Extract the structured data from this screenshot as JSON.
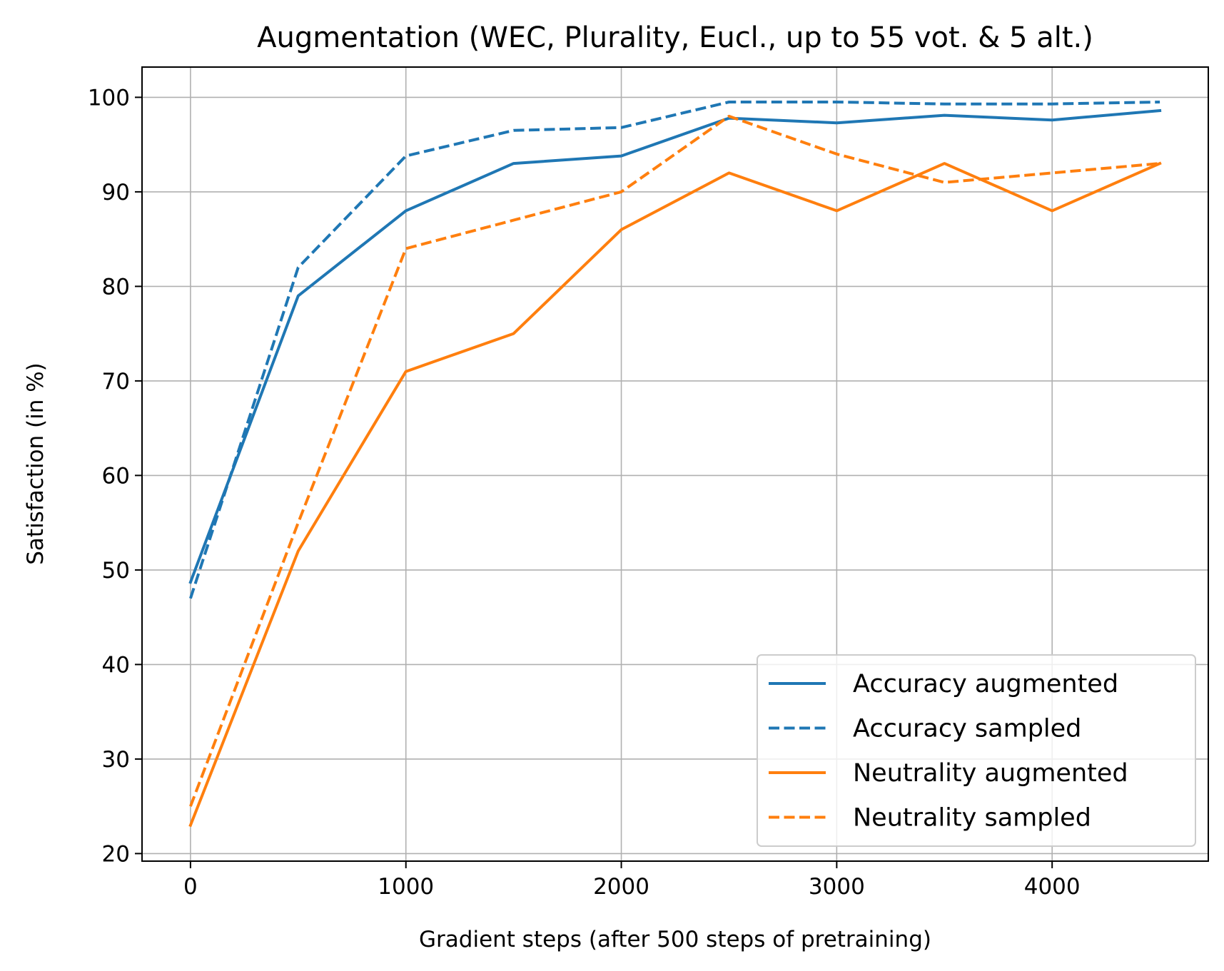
{
  "chart_data": {
    "type": "line",
    "title": "Augmentation (WEC, Plurality, Eucl., up to 55 vot. & 5 alt.)",
    "xlabel": "Gradient steps (after 500 steps of pretraining)",
    "ylabel": "Satisfaction (in %)",
    "x": [
      0,
      500,
      1000,
      1500,
      2000,
      2500,
      3000,
      3500,
      4000,
      4500
    ],
    "xlim": [
      -225,
      4725
    ],
    "ylim": [
      19.2,
      103.2
    ],
    "xticks": [
      0,
      1000,
      2000,
      3000,
      4000
    ],
    "yticks": [
      20,
      30,
      40,
      50,
      60,
      70,
      80,
      90,
      100
    ],
    "xtick_labels": [
      "0",
      "1000",
      "2000",
      "3000",
      "4000"
    ],
    "ytick_labels": [
      "20",
      "30",
      "40",
      "50",
      "60",
      "70",
      "80",
      "90",
      "100"
    ],
    "grid": true,
    "legend_position": "bottom-right",
    "series": [
      {
        "name": "Accuracy augmented",
        "color": "#1f77b4",
        "style": "solid",
        "values": [
          48.7,
          79.0,
          88.0,
          93.0,
          93.8,
          97.8,
          97.3,
          98.1,
          97.6,
          98.6
        ]
      },
      {
        "name": "Accuracy sampled",
        "color": "#1f77b4",
        "style": "dashed",
        "values": [
          47.0,
          82.0,
          93.8,
          96.5,
          96.8,
          99.5,
          99.5,
          99.3,
          99.3,
          99.5
        ]
      },
      {
        "name": "Neutrality augmented",
        "color": "#ff7f0e",
        "style": "solid",
        "values": [
          23.0,
          52.0,
          71.0,
          75.0,
          86.0,
          92.0,
          88.0,
          93.0,
          88.0,
          93.0
        ]
      },
      {
        "name": "Neutrality sampled",
        "color": "#ff7f0e",
        "style": "dashed",
        "values": [
          25.0,
          55.0,
          84.0,
          87.0,
          90.0,
          98.0,
          94.0,
          91.0,
          92.0,
          93.0
        ]
      }
    ]
  }
}
